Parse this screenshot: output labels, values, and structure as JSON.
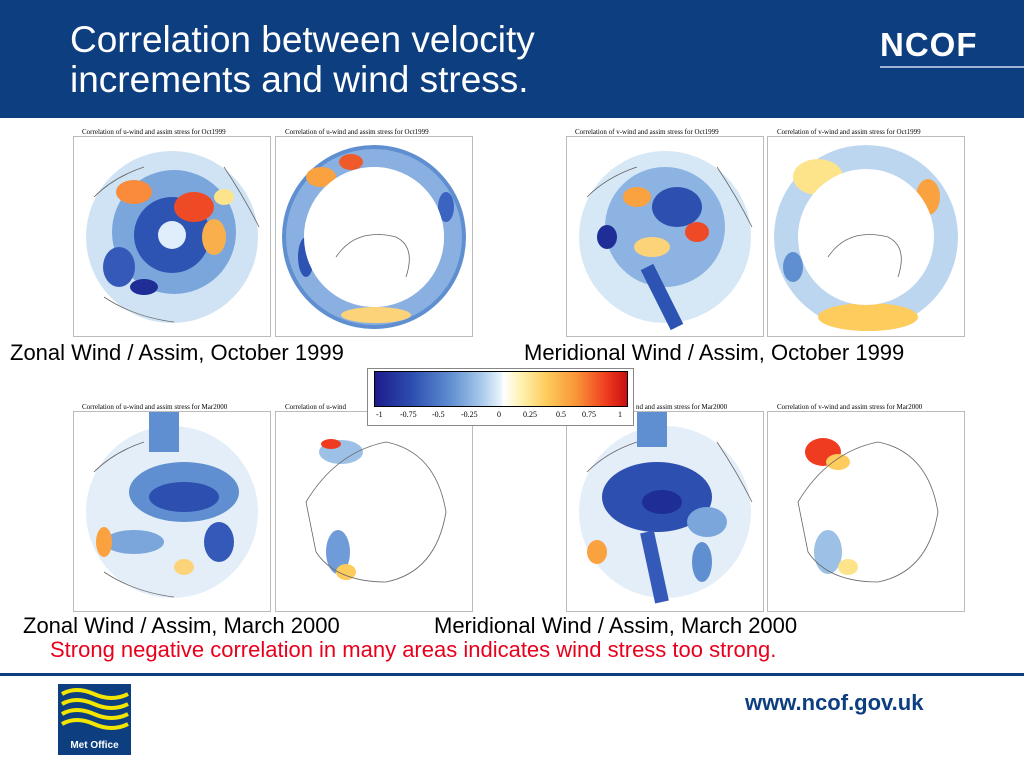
{
  "header": {
    "title_line1": "Correlation between velocity",
    "title_line2": "increments and wind stress.",
    "brand": "NCOF",
    "color": "#0d3f80"
  },
  "maps": {
    "oct_u_arctic_title": "Correlation of u-wind and assim stress for Oct1999",
    "oct_u_antarctic_title": "Correlation of u-wind and assim stress for Oct1999",
    "oct_v_arctic_title": "Correlation of v-wind and assim stress for Oct1999",
    "oct_v_antarctic_title": "Correlation of v-wind and assim stress for Oct1999",
    "mar_u_arctic_title": "Correlation of u-wind and assim stress for Mar2000",
    "mar_u_antarctic_title": "Correlation of u-wind",
    "mar_v_arctic_title": "nd and assim stress for Mar2000",
    "mar_v_antarctic_title": "Correlation of v-wind and assim stress for Mar2000"
  },
  "captions": {
    "zonal_oct": "Zonal Wind / Assim, October 1999",
    "meridional_oct": "Meridional Wind / Assim, October 1999",
    "zonal_mar": "Zonal Wind / Assim, March 2000",
    "meridional_mar": "Meridional Wind / Assim, March 2000"
  },
  "colorbar": {
    "ticks": [
      "-1",
      "-0.75",
      "-0.5",
      "-0.25",
      "0",
      "0.25",
      "0.5",
      "0.75",
      "1"
    ]
  },
  "note": "Strong negative correlation in many areas indicates wind stress too strong.",
  "footer": {
    "logo_text": "Met Office",
    "url": "www.ncof.gov.uk"
  }
}
